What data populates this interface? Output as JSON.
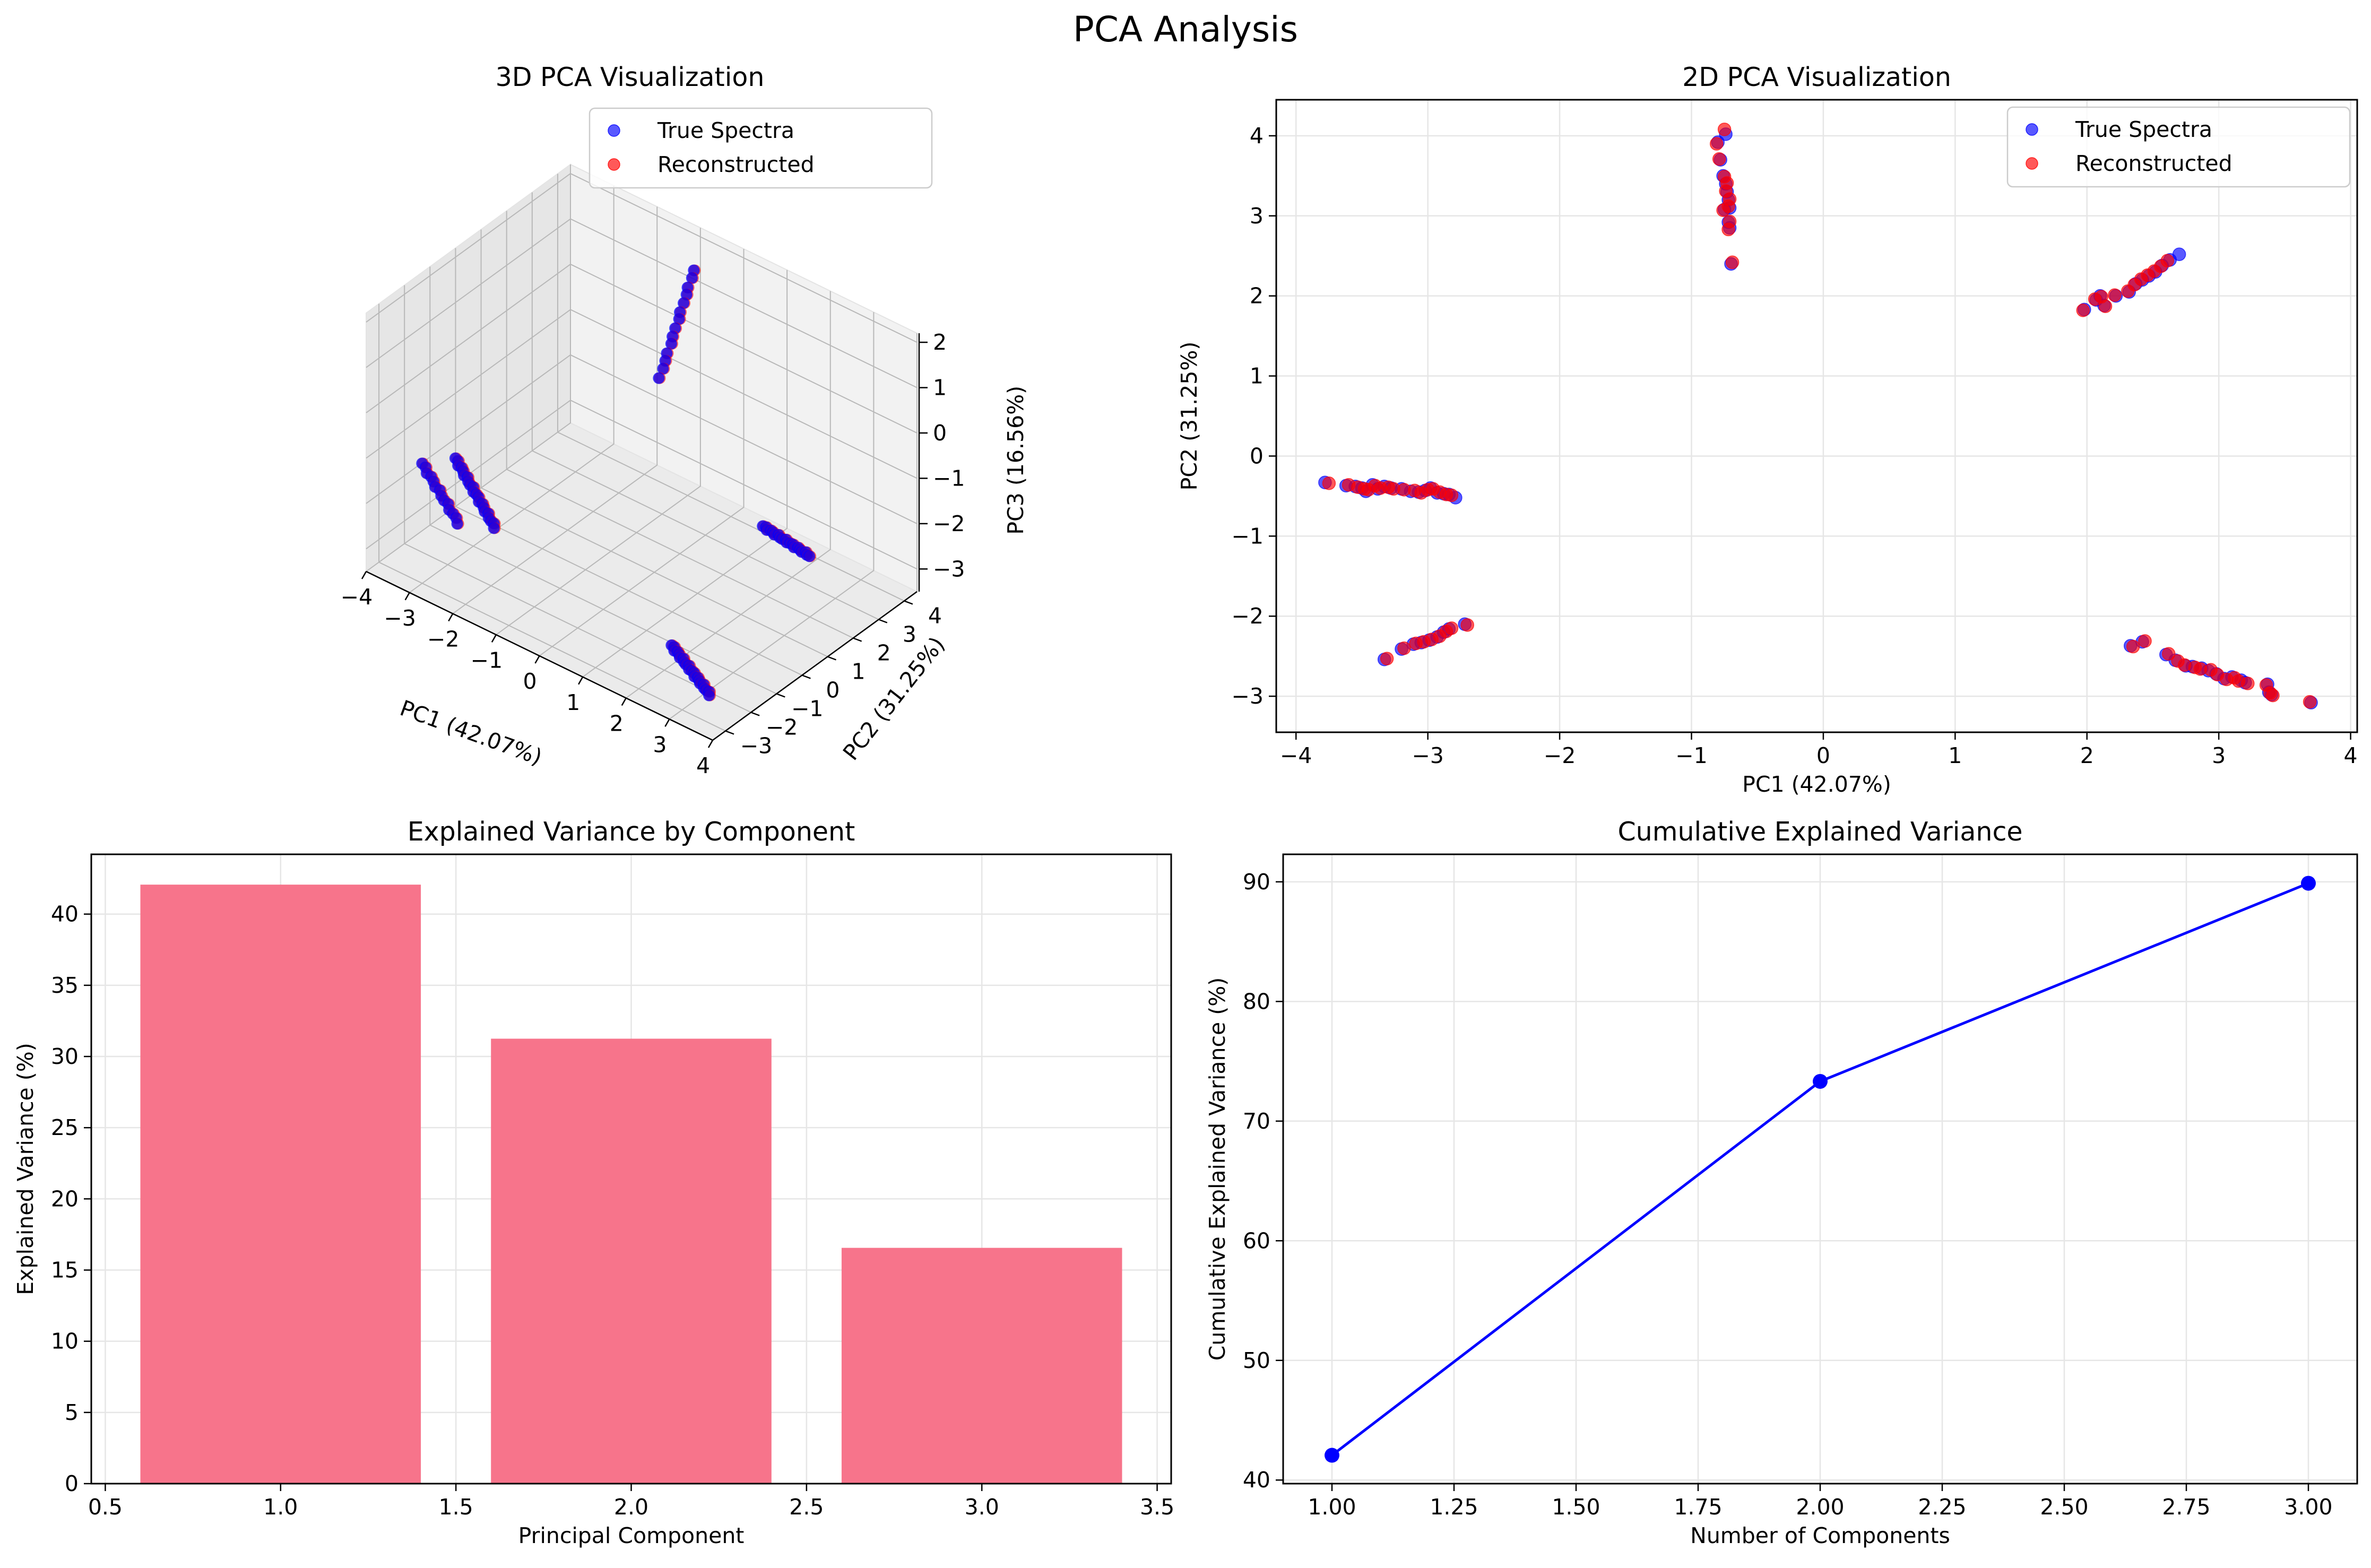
{
  "figure": {
    "suptitle": "PCA Analysis"
  },
  "colors": {
    "true_spectra": "#0000ff",
    "reconstructed": "#ff0000",
    "bar": "#f7748b",
    "line": "#0000ff",
    "grid": "#e6e6e6",
    "pane_back": "#f2f2f2",
    "pane_side": "#e6e6e6",
    "pane_floor": "#ebebeb"
  },
  "chart_data": [
    {
      "type": "scatter",
      "projection": "3d",
      "title": "3D PCA Visualization",
      "xlabel": "PC1 (42.07%)",
      "ylabel": "PC2 (31.25%)",
      "zlabel": "PC3 (16.56%)",
      "xlim": [
        -4,
        4
      ],
      "ylim": [
        -3.5,
        4.5
      ],
      "zlim": [
        -3.5,
        2.2
      ],
      "xticks": [
        "−4",
        "−3",
        "−2",
        "−1",
        "0",
        "1",
        "2",
        "3",
        "4"
      ],
      "yticks": [
        "−3",
        "−2",
        "−1",
        "0",
        "1",
        "2",
        "3",
        "4"
      ],
      "zticks": [
        "−3",
        "−2",
        "−1",
        "0",
        "1",
        "2"
      ],
      "legend": {
        "position": "top-right",
        "entries": [
          "True Spectra",
          "Reconstructed"
        ]
      },
      "grid": true,
      "clusters": [
        {
          "x": [
            -3.8,
            -2.8
          ],
          "y": [
            -0.35,
            -0.5
          ],
          "z": [
            -2.2,
            -3.2
          ],
          "n": 22
        },
        {
          "x": [
            -3.3,
            -2.7
          ],
          "y": [
            -2.5,
            -2.1
          ],
          "z": [
            -1.2,
            -2.4
          ],
          "n": 14
        },
        {
          "x": [
            -0.8,
            -0.7
          ],
          "y": [
            3.9,
            2.4
          ],
          "z": [
            1.6,
            -0.1
          ],
          "n": 14
        },
        {
          "x": [
            2.0,
            2.7
          ],
          "y": [
            1.85,
            2.5
          ],
          "z": [
            -1.9,
            -2.5
          ],
          "n": 20
        },
        {
          "x": [
            2.4,
            3.7
          ],
          "y": [
            -2.4,
            -3.1
          ],
          "z": [
            -2.6,
            -2.8
          ],
          "n": 22
        }
      ]
    },
    {
      "type": "scatter",
      "title": "2D PCA Visualization",
      "xlabel": "PC1 (42.07%)",
      "ylabel": "PC2 (31.25%)",
      "xlim": [
        -4.15,
        4.05
      ],
      "ylim": [
        -3.45,
        4.45
      ],
      "xticks": [
        -4,
        -3,
        -2,
        -1,
        0,
        1,
        2,
        3,
        4
      ],
      "yticks": [
        -3,
        -2,
        -1,
        0,
        1,
        2,
        3,
        4
      ],
      "legend": {
        "position": "top-right",
        "entries": [
          "True Spectra",
          "Reconstructed"
        ]
      },
      "grid": true,
      "series": [
        {
          "name": "True Spectra",
          "points": [
            [
              -3.78,
              -0.33
            ],
            [
              -3.62,
              -0.37
            ],
            [
              -3.55,
              -0.38
            ],
            [
              -3.5,
              -0.4
            ],
            [
              -3.47,
              -0.44
            ],
            [
              -3.42,
              -0.36
            ],
            [
              -3.38,
              -0.41
            ],
            [
              -3.33,
              -0.38
            ],
            [
              -3.28,
              -0.4
            ],
            [
              -3.2,
              -0.41
            ],
            [
              -3.13,
              -0.44
            ],
            [
              -3.07,
              -0.45
            ],
            [
              -3.02,
              -0.43
            ],
            [
              -2.98,
              -0.4
            ],
            [
              -2.93,
              -0.46
            ],
            [
              -2.88,
              -0.47
            ],
            [
              -2.84,
              -0.48
            ],
            [
              -2.79,
              -0.52
            ],
            [
              -3.33,
              -2.54
            ],
            [
              -3.2,
              -2.41
            ],
            [
              -3.11,
              -2.35
            ],
            [
              -3.05,
              -2.33
            ],
            [
              -2.99,
              -2.3
            ],
            [
              -2.93,
              -2.26
            ],
            [
              -2.88,
              -2.2
            ],
            [
              -2.84,
              -2.16
            ],
            [
              -2.72,
              -2.1
            ],
            [
              -0.8,
              3.92
            ],
            [
              -0.78,
              3.7
            ],
            [
              -0.76,
              3.5
            ],
            [
              -0.74,
              3.4
            ],
            [
              -0.73,
              3.3
            ],
            [
              -0.72,
              3.2
            ],
            [
              -0.71,
              3.1
            ],
            [
              -0.74,
              4.02
            ],
            [
              -0.75,
              3.08
            ],
            [
              -0.72,
              2.92
            ],
            [
              -0.71,
              2.85
            ],
            [
              -0.7,
              2.4
            ],
            [
              1.98,
              1.83
            ],
            [
              2.07,
              1.95
            ],
            [
              2.1,
              2.0
            ],
            [
              2.13,
              1.88
            ],
            [
              2.22,
              2.0
            ],
            [
              2.32,
              2.05
            ],
            [
              2.37,
              2.15
            ],
            [
              2.42,
              2.2
            ],
            [
              2.47,
              2.25
            ],
            [
              2.52,
              2.3
            ],
            [
              2.57,
              2.38
            ],
            [
              2.63,
              2.45
            ],
            [
              2.7,
              2.52
            ],
            [
              2.33,
              -2.37
            ],
            [
              2.42,
              -2.32
            ],
            [
              2.6,
              -2.48
            ],
            [
              2.67,
              -2.55
            ],
            [
              2.75,
              -2.62
            ],
            [
              2.8,
              -2.63
            ],
            [
              2.87,
              -2.65
            ],
            [
              2.92,
              -2.68
            ],
            [
              2.98,
              -2.72
            ],
            [
              3.04,
              -2.78
            ],
            [
              3.1,
              -2.76
            ],
            [
              3.17,
              -2.8
            ],
            [
              3.2,
              -2.83
            ],
            [
              3.37,
              -2.85
            ],
            [
              3.38,
              -2.95
            ],
            [
              3.4,
              -2.98
            ],
            [
              3.7,
              -3.08
            ]
          ]
        },
        {
          "name": "Reconstructed",
          "points": [
            [
              -3.75,
              -0.34
            ],
            [
              -3.6,
              -0.36
            ],
            [
              -3.53,
              -0.39
            ],
            [
              -3.48,
              -0.41
            ],
            [
              -3.45,
              -0.42
            ],
            [
              -3.4,
              -0.37
            ],
            [
              -3.36,
              -0.4
            ],
            [
              -3.3,
              -0.39
            ],
            [
              -3.26,
              -0.41
            ],
            [
              -3.18,
              -0.42
            ],
            [
              -3.1,
              -0.43
            ],
            [
              -3.05,
              -0.46
            ],
            [
              -3.0,
              -0.42
            ],
            [
              -2.96,
              -0.41
            ],
            [
              -2.91,
              -0.45
            ],
            [
              -2.86,
              -0.48
            ],
            [
              -2.82,
              -0.49
            ],
            [
              -3.31,
              -2.53
            ],
            [
              -3.18,
              -2.4
            ],
            [
              -3.09,
              -2.34
            ],
            [
              -3.03,
              -2.32
            ],
            [
              -2.97,
              -2.29
            ],
            [
              -2.91,
              -2.25
            ],
            [
              -2.86,
              -2.19
            ],
            [
              -2.82,
              -2.15
            ],
            [
              -2.7,
              -2.11
            ],
            [
              -0.81,
              3.9
            ],
            [
              -0.79,
              3.71
            ],
            [
              -0.75,
              3.49
            ],
            [
              -0.73,
              3.41
            ],
            [
              -0.74,
              3.31
            ],
            [
              -0.71,
              3.21
            ],
            [
              -0.72,
              3.12
            ],
            [
              -0.75,
              4.08
            ],
            [
              -0.76,
              3.07
            ],
            [
              -0.71,
              2.93
            ],
            [
              -0.72,
              2.83
            ],
            [
              -0.69,
              2.42
            ],
            [
              1.97,
              1.82
            ],
            [
              2.06,
              1.96
            ],
            [
              2.11,
              1.99
            ],
            [
              2.14,
              1.87
            ],
            [
              2.21,
              2.01
            ],
            [
              2.31,
              2.06
            ],
            [
              2.36,
              2.14
            ],
            [
              2.41,
              2.21
            ],
            [
              2.46,
              2.26
            ],
            [
              2.51,
              2.31
            ],
            [
              2.56,
              2.37
            ],
            [
              2.61,
              2.44
            ],
            [
              2.35,
              -2.38
            ],
            [
              2.44,
              -2.31
            ],
            [
              2.62,
              -2.47
            ],
            [
              2.69,
              -2.56
            ],
            [
              2.74,
              -2.61
            ],
            [
              2.82,
              -2.64
            ],
            [
              2.86,
              -2.66
            ],
            [
              2.94,
              -2.67
            ],
            [
              2.99,
              -2.73
            ],
            [
              3.06,
              -2.79
            ],
            [
              3.12,
              -2.77
            ],
            [
              3.15,
              -2.81
            ],
            [
              3.22,
              -2.84
            ],
            [
              3.36,
              -2.86
            ],
            [
              3.39,
              -2.96
            ],
            [
              3.41,
              -2.99
            ],
            [
              3.69,
              -3.07
            ]
          ]
        }
      ]
    },
    {
      "type": "bar",
      "title": "Explained Variance by Component",
      "xlabel": "Principal Component",
      "ylabel": "Explained Variance (%)",
      "xlim": [
        0.46,
        3.54
      ],
      "ylim": [
        0,
        44.2
      ],
      "xticks": [
        "0.5",
        "1.0",
        "1.5",
        "2.0",
        "2.5",
        "3.0",
        "3.5"
      ],
      "xtick_values": [
        0.5,
        1.0,
        1.5,
        2.0,
        2.5,
        3.0,
        3.5
      ],
      "yticks": [
        0,
        5,
        10,
        15,
        20,
        25,
        30,
        35,
        40
      ],
      "categories": [
        1,
        2,
        3
      ],
      "values": [
        42.07,
        31.25,
        16.56
      ],
      "bar_width": 0.8,
      "grid": true
    },
    {
      "type": "line",
      "title": "Cumulative Explained Variance",
      "xlabel": "Number of Components",
      "ylabel": "Cumulative Explained Variance (%)",
      "xlim": [
        0.9,
        3.1
      ],
      "ylim": [
        39.7,
        92.3
      ],
      "xticks": [
        "1.00",
        "1.25",
        "1.50",
        "1.75",
        "2.00",
        "2.25",
        "2.50",
        "2.75",
        "3.00"
      ],
      "xtick_values": [
        1.0,
        1.25,
        1.5,
        1.75,
        2.0,
        2.25,
        2.5,
        2.75,
        3.0
      ],
      "yticks": [
        40,
        50,
        60,
        70,
        80,
        90
      ],
      "x": [
        1,
        2,
        3
      ],
      "y": [
        42.07,
        73.32,
        89.88
      ],
      "marker": "circle",
      "grid": true
    }
  ]
}
